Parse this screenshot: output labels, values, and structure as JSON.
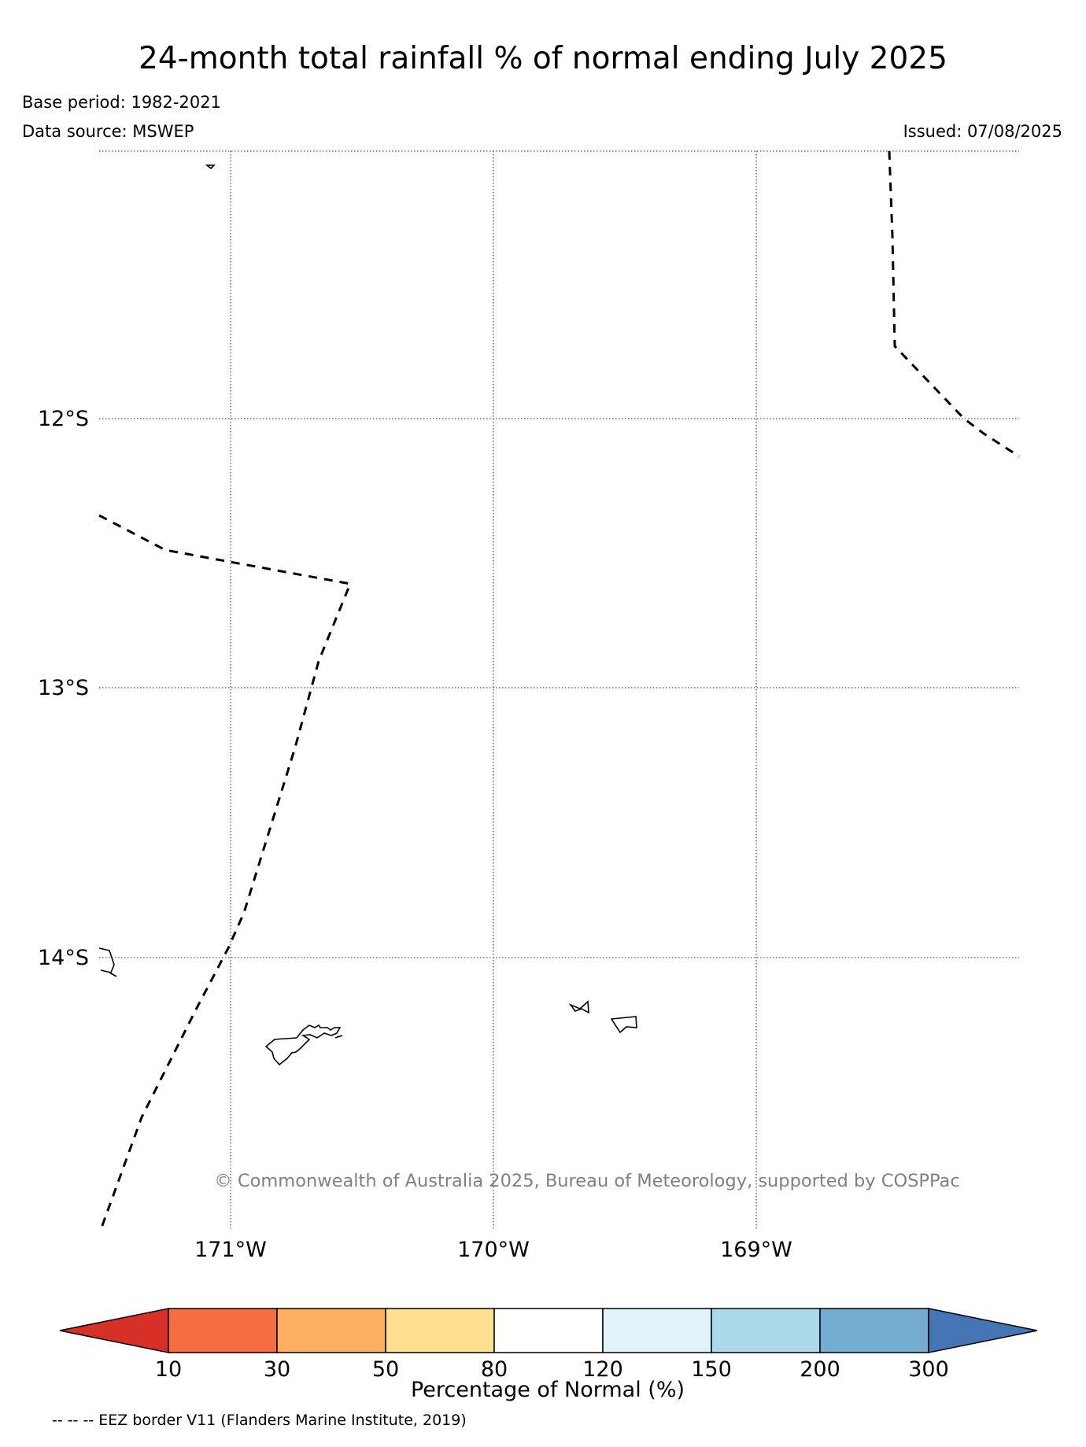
{
  "header": {
    "title": "24-month total rainfall % of normal ending July 2025",
    "base_period": "Base period: 1982-2021",
    "data_source": "Data source: MSWEP",
    "issued": "Issued: 07/08/2025"
  },
  "map": {
    "lat_labels": [
      "12°S",
      "13°S",
      "14°S"
    ],
    "lon_labels": [
      "171°W",
      "170°W",
      "169°W"
    ],
    "copyright": "© Commonwealth of Australia 2025, Bureau of Meteorology, supported by COSPPac",
    "eez_line_style": "dashed",
    "gridline_style": "dotted"
  },
  "colorbar": {
    "label": "Percentage of Normal (%)",
    "ticks": [
      "10",
      "30",
      "50",
      "80",
      "120",
      "150",
      "200",
      "300"
    ],
    "colors": [
      "#d73027",
      "#f46d43",
      "#fdae61",
      "#fee090",
      "#ffffff",
      "#e0f3f8",
      "#abd9e9",
      "#74add1",
      "#4575b4"
    ]
  },
  "footer": {
    "eez_note": "-- -- -- EEZ border V11 (Flanders Marine Institute, 2019)"
  }
}
